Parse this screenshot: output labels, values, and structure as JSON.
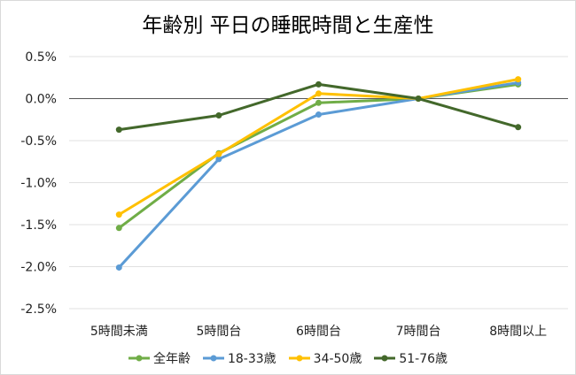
{
  "chart_data": {
    "type": "line",
    "title": "年齢別 平日の睡眠時間と生産性",
    "xlabel": "",
    "ylabel": "",
    "categories": [
      "5時間未満",
      "5時間台",
      "6時間台",
      "7時間台",
      "8時間以上"
    ],
    "ylim": [
      -2.5,
      0.5
    ],
    "yticks": [
      0.5,
      0.0,
      -0.5,
      -1.0,
      -1.5,
      -2.0,
      -2.5
    ],
    "ytick_labels": [
      "0.5%",
      "0.0%",
      "-0.5%",
      "-1.0%",
      "-1.5%",
      "-2.0%",
      "-2.5%"
    ],
    "grid": true,
    "legend_position": "bottom",
    "series": [
      {
        "name": "全年齢",
        "color": "#70ad47",
        "values": [
          -1.54,
          -0.65,
          -0.05,
          0.0,
          0.17
        ]
      },
      {
        "name": "18-33歳",
        "color": "#5b9bd5",
        "values": [
          -2.01,
          -0.72,
          -0.19,
          0.0,
          0.19
        ]
      },
      {
        "name": "34-50歳",
        "color": "#ffc000",
        "values": [
          -1.38,
          -0.66,
          0.06,
          0.0,
          0.23
        ]
      },
      {
        "name": "51-76歳",
        "color": "#43682b",
        "values": [
          -0.37,
          -0.2,
          0.17,
          0.0,
          -0.34
        ]
      }
    ]
  }
}
